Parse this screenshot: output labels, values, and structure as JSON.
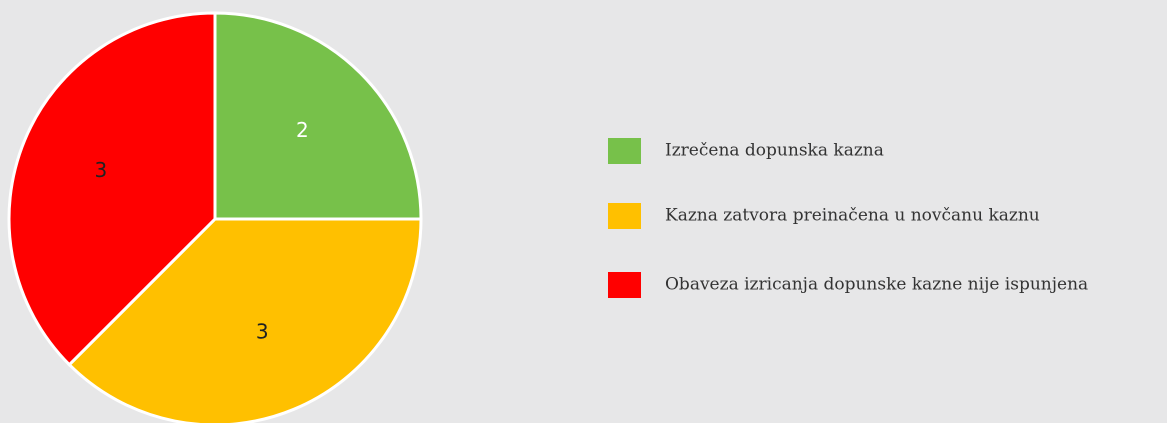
{
  "chart_data": {
    "type": "pie",
    "categories": [
      "Izrečena dopunska kazna",
      "Kazna zatvora preinačena u novčanu kaznu",
      "Obaveza izricanja dopunske kazne nije ispunjena"
    ],
    "values": [
      2,
      3,
      3
    ],
    "colors": [
      "#77c14a",
      "#ffc000",
      "#ff0000"
    ],
    "label_colors": [
      "#ffffff",
      "#222222",
      "#222222"
    ],
    "legend": "right"
  }
}
